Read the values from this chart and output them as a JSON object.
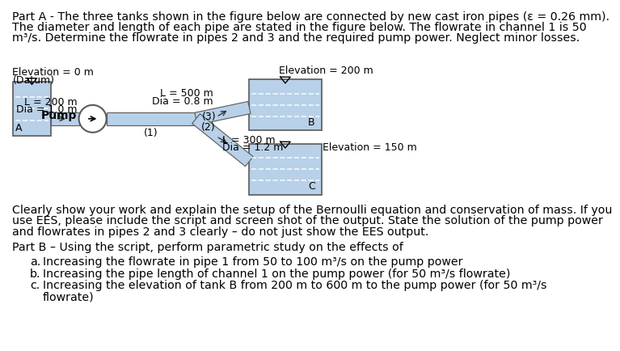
{
  "title_line1": "Part A - The three tanks shown in the figure below are connected by new cast iron pipes (ε = 0.26 mm).",
  "title_line2": "The diameter and length of each pipe are stated in the figure below. The flowrate in channel 1 is 50",
  "title_line3": "m³/s. Determine the flowrate in pipes 2 and 3 and the required pump power. Neglect minor losses.",
  "elev_A1": "Elevation = 0 m",
  "elev_A2": "(Datum)",
  "elev_B": "Elevation = 200 m",
  "elev_C": "Elevation = 150 m",
  "pump_label": "Pump",
  "pipe1_dia": "Dia = 1.0 m",
  "pipe1_L": "L = 200 m",
  "pipe2_dia": "Dia = 0.8 m",
  "pipe2_L": "L = 500 m",
  "pipe3_dia": "Dia = 1.2 m",
  "pipe3_L": "L = 300 m",
  "label1": "(1)",
  "label2": "(2)",
  "label3": "(3)",
  "labelA": "A",
  "labelB": "B",
  "labelC": "C",
  "tank_fill": "#b8d0e8",
  "tank_edge": "#5a5a5a",
  "pipe_fill": "#b8d0e8",
  "pipe_edge": "#5a5a5a",
  "pump_fill": "#ffffff",
  "pump_edge": "#5a5a5a",
  "dash_color": "#ffffff",
  "text_body_size": 10.2,
  "text_diag_size": 9.0,
  "text_below1": "Clearly show your work and explain the setup of the Bernoulli equation and conservation of mass. If you",
  "text_below2": "use EES, please include the script and screen shot of the output. State the solution of the pump power",
  "text_below3": "and flowrates in pipes 2 and 3 clearly – do not just show the EES output.",
  "partB_title": "Part B – Using the script, perform parametric study on the effects of",
  "item_a_label": "a.",
  "item_a_text": "Increasing the flowrate in pipe 1 from 50 to 100 m³/s on the pump power",
  "item_b_label": "b.",
  "item_b_text": "Increasing the pipe length of channel 1 on the pump power (for 50 m³/s flowrate)",
  "item_c_label": "c.",
  "item_c_text1": "Increasing the elevation of tank B from 200 m to 600 m to the pump power (for 50 m³/s",
  "item_c_text2": "flowrate)",
  "bg": "#ffffff"
}
